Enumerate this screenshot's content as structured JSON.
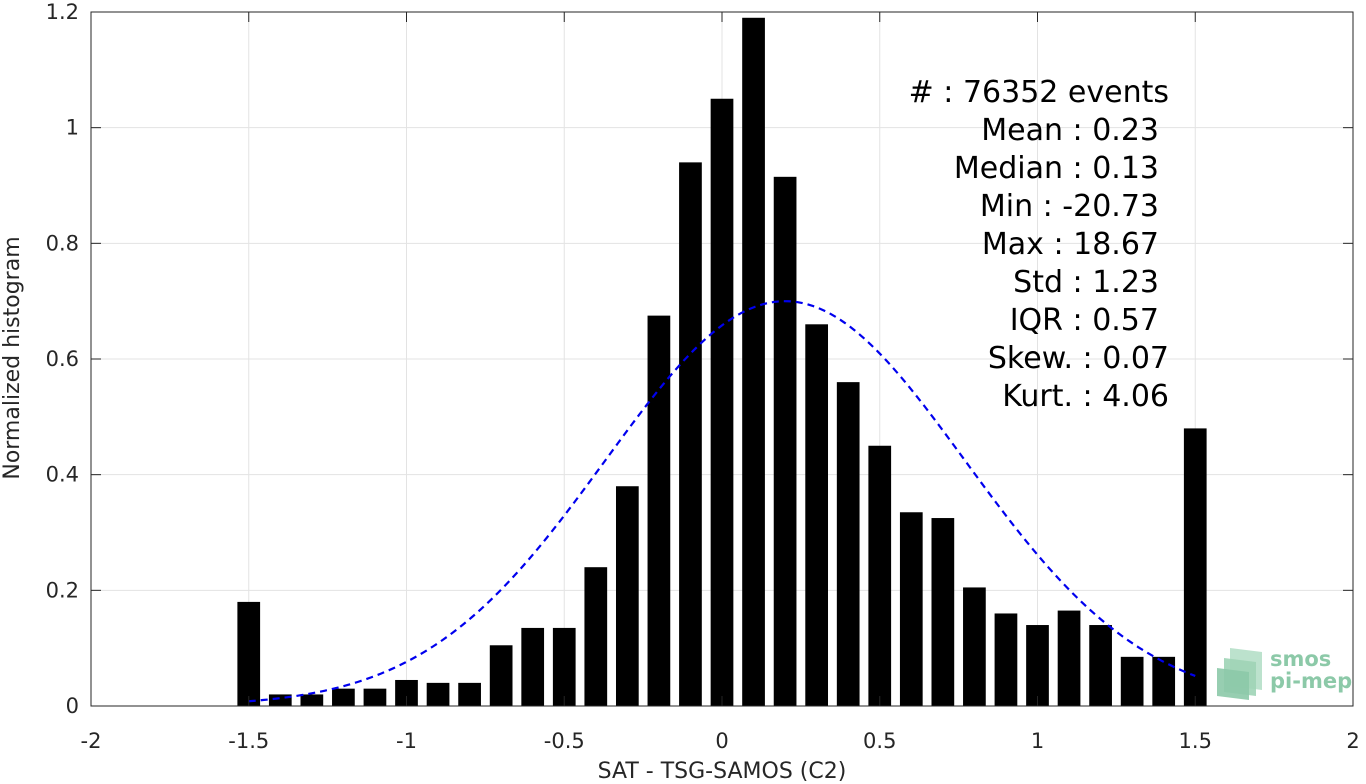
{
  "chart_data": {
    "type": "bar",
    "xlabel": "SAT - TSG-SAMOS (C2)",
    "ylabel": "Normalized histogram",
    "xlim": [
      -2,
      2
    ],
    "ylim": [
      0,
      1.2
    ],
    "xticks": [
      -2,
      -1.5,
      -1,
      -0.5,
      0,
      0.5,
      1,
      1.5,
      2
    ],
    "xtick_labels": [
      "-2",
      "-1.5",
      "-1",
      "-0.5",
      "0",
      "0.5",
      "1",
      "1.5",
      "2"
    ],
    "yticks": [
      0,
      0.2,
      0.4,
      0.6,
      0.8,
      1,
      1.2
    ],
    "ytick_labels": [
      "0",
      "0.2",
      "0.4",
      "0.6",
      "0.8",
      "1",
      "1.2"
    ],
    "grid": true,
    "bar_color": "#000000",
    "bin_width": 0.1,
    "x": [
      -1.5,
      -1.4,
      -1.3,
      -1.2,
      -1.1,
      -1.0,
      -0.9,
      -0.8,
      -0.7,
      -0.6,
      -0.5,
      -0.4,
      -0.3,
      -0.2,
      -0.1,
      0.0,
      0.1,
      0.2,
      0.3,
      0.4,
      0.5,
      0.6,
      0.7,
      0.8,
      0.9,
      1.0,
      1.1,
      1.2,
      1.3,
      1.4,
      1.5
    ],
    "values": [
      0.18,
      0.02,
      0.02,
      0.03,
      0.03,
      0.045,
      0.04,
      0.04,
      0.105,
      0.135,
      0.135,
      0.24,
      0.38,
      0.675,
      0.94,
      1.05,
      1.19,
      0.915,
      0.66,
      0.56,
      0.45,
      0.335,
      0.325,
      0.205,
      0.16,
      0.14,
      0.165,
      0.14,
      0.085,
      0.085,
      0.48
    ],
    "fit_curve": {
      "style": "dashed",
      "color": "#0000ee",
      "mean": 0.2,
      "std": 0.57,
      "peak": 0.7,
      "x_range": [
        -1.5,
        1.5
      ]
    },
    "stats": [
      "#  : 76352 events",
      "Mean : 0.23",
      "Median : 0.13",
      "Min : -20.73",
      "Max : 18.67",
      "Std : 1.23",
      "IQR : 0.57",
      "Skew. : 0.07",
      "Kurt. : 4.06"
    ],
    "logo": {
      "line1": "smos",
      "line2": "pi-mep",
      "color": "#8cc9a8"
    }
  }
}
